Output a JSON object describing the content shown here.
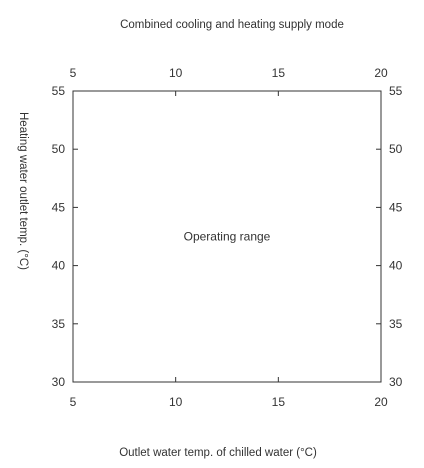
{
  "chart_data": {
    "type": "area",
    "title": "Combined cooling and heating supply mode",
    "xlabel": "Outlet water temp. of chilled water (°C)",
    "ylabel": "Heating water outlet temp. (°C)",
    "xlim": [
      5,
      20
    ],
    "ylim": [
      30,
      55
    ],
    "x_ticks": [
      "5",
      "10",
      "15",
      "20"
    ],
    "y_ticks": [
      "30",
      "35",
      "40",
      "45",
      "50",
      "55"
    ],
    "tick_values_x": [
      5,
      10,
      15,
      20
    ],
    "tick_values_y": [
      30,
      35,
      40,
      45,
      50,
      55
    ],
    "region": {
      "label": "Operating range",
      "x": [
        5,
        20
      ],
      "y": [
        30,
        55
      ]
    },
    "mirrored_axes": true,
    "grid": false,
    "colors": {
      "axis": "#333333",
      "text": "#333333",
      "background": "#ffffff"
    }
  }
}
